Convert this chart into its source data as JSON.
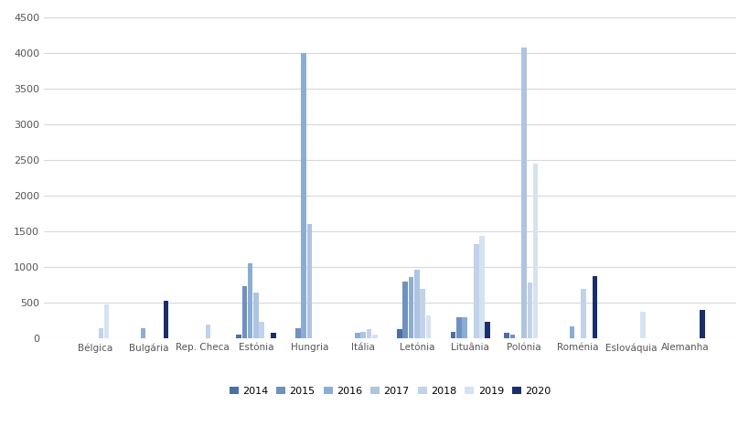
{
  "countries": [
    "Bélgica",
    "Bulgária",
    "Rep. Checa",
    "Estónia",
    "Hungria",
    "Itália",
    "Letónia",
    "Lituânia",
    "Polónia",
    "Roménia",
    "Eslováquia",
    "Alemanha"
  ],
  "years": [
    "2014",
    "2015",
    "2016",
    "2017",
    "2018",
    "2019",
    "2020"
  ],
  "colors": [
    "#4a6fa5",
    "#7090c0",
    "#8badd4",
    "#aec4e0",
    "#c0d3ea",
    "#d5e3f0",
    "#1b2e6b"
  ],
  "data": {
    "Bélgica": [
      0,
      0,
      0,
      0,
      150,
      480,
      0
    ],
    "Bulgária": [
      0,
      0,
      150,
      0,
      0,
      0,
      530
    ],
    "Rep. Checa": [
      0,
      0,
      0,
      0,
      200,
      0,
      0
    ],
    "Estónia": [
      55,
      740,
      1060,
      650,
      240,
      0,
      80
    ],
    "Hungria": [
      0,
      150,
      4000,
      1600,
      0,
      0,
      0
    ],
    "Itália": [
      0,
      0,
      80,
      100,
      130,
      60,
      0
    ],
    "Letónia": [
      130,
      800,
      860,
      960,
      700,
      320,
      0
    ],
    "Lituânia": [
      90,
      300,
      300,
      0,
      1330,
      1440,
      230
    ],
    "Polónia": [
      80,
      60,
      0,
      4080,
      780,
      2450,
      0
    ],
    "Roménia": [
      0,
      0,
      170,
      0,
      700,
      0,
      880
    ],
    "Eslováquia": [
      0,
      0,
      0,
      0,
      0,
      380,
      0
    ],
    "Alemanha": [
      0,
      0,
      0,
      0,
      0,
      0,
      400
    ]
  },
  "ylim": [
    0,
    4500
  ],
  "yticks": [
    0,
    500,
    1000,
    1500,
    2000,
    2500,
    3000,
    3500,
    4000,
    4500
  ],
  "background_color": "#ffffff",
  "grid_color": "#d8d8d8"
}
